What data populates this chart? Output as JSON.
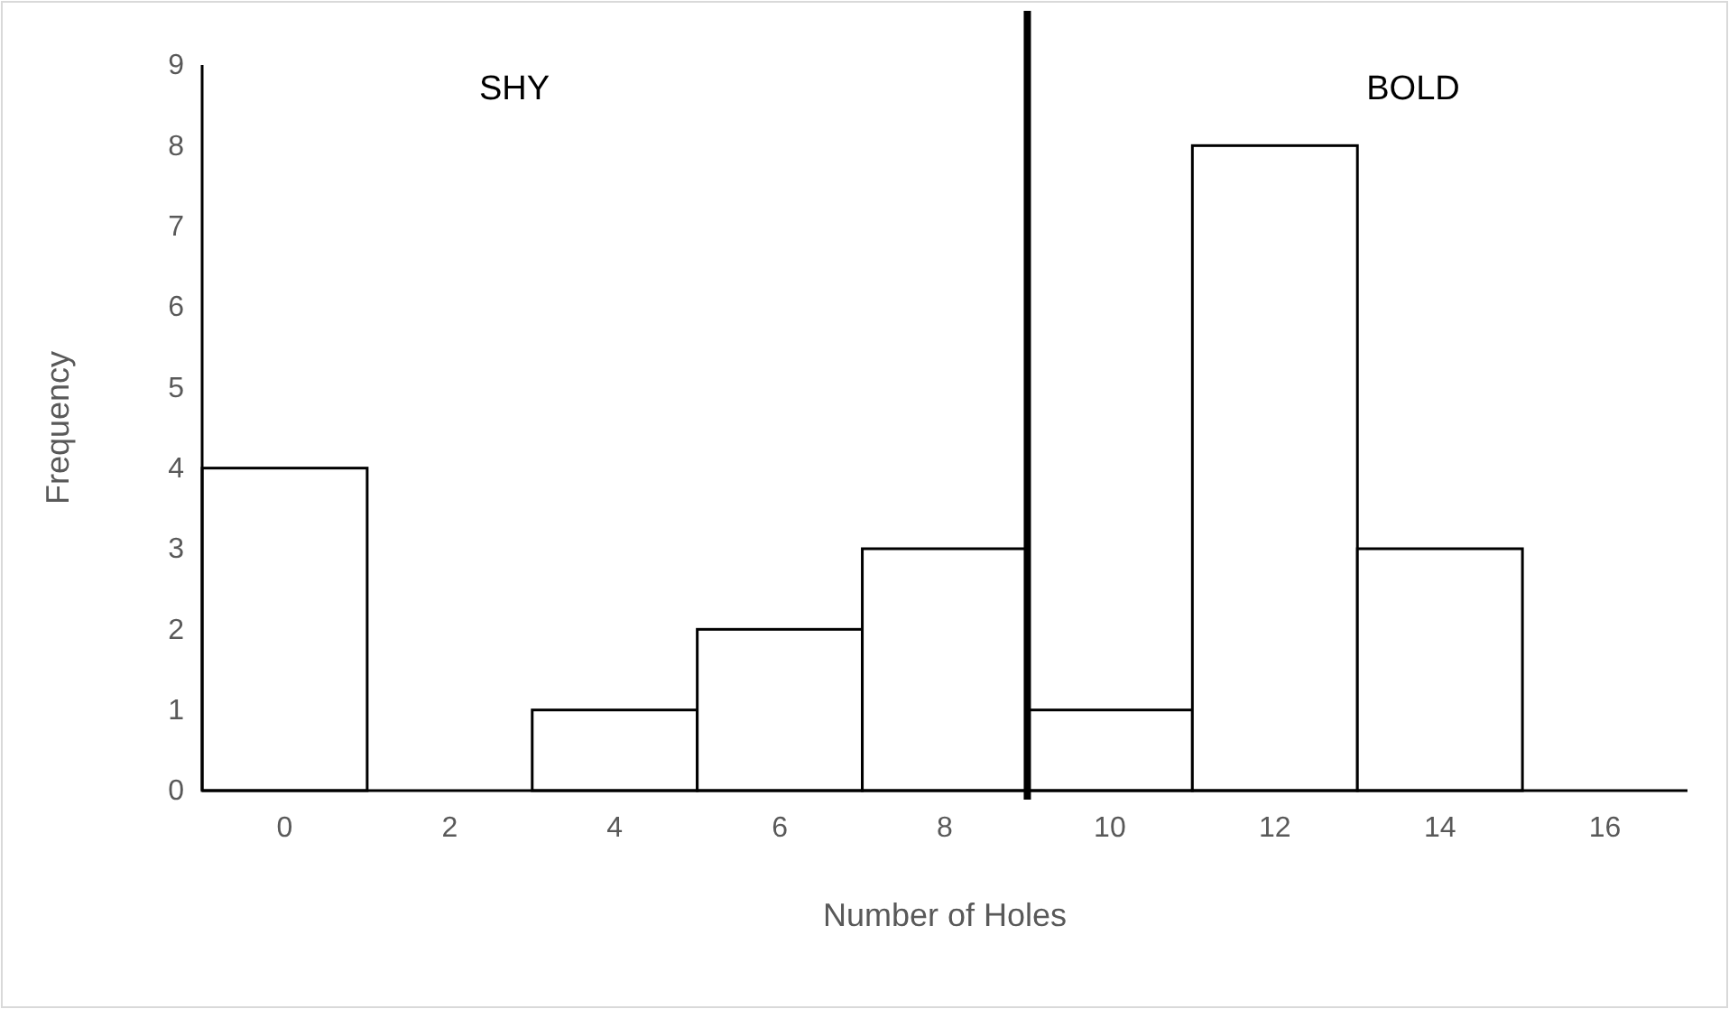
{
  "chart_data": {
    "type": "histogram",
    "xlabel": "Number of Holes",
    "ylabel": "Frequency",
    "bins": [
      -1,
      1,
      3,
      5,
      7,
      9,
      11,
      13,
      15,
      17
    ],
    "values": [
      4,
      0,
      1,
      2,
      3,
      1,
      8,
      3,
      0
    ],
    "color": "#ffffff",
    "xlim": [
      -1,
      17
    ],
    "xticks": [
      0,
      2,
      4,
      6,
      8,
      10,
      12,
      14,
      16
    ],
    "ylim": [
      0,
      9
    ],
    "yticks": [
      0,
      1,
      2,
      3,
      4,
      5,
      6,
      7,
      8,
      9
    ],
    "grid": false,
    "ref_lines": [
      {
        "axis": "x",
        "value": 9,
        "color": "#000000"
      }
    ],
    "annotations": [
      "SHY",
      "BOLD"
    ]
  }
}
